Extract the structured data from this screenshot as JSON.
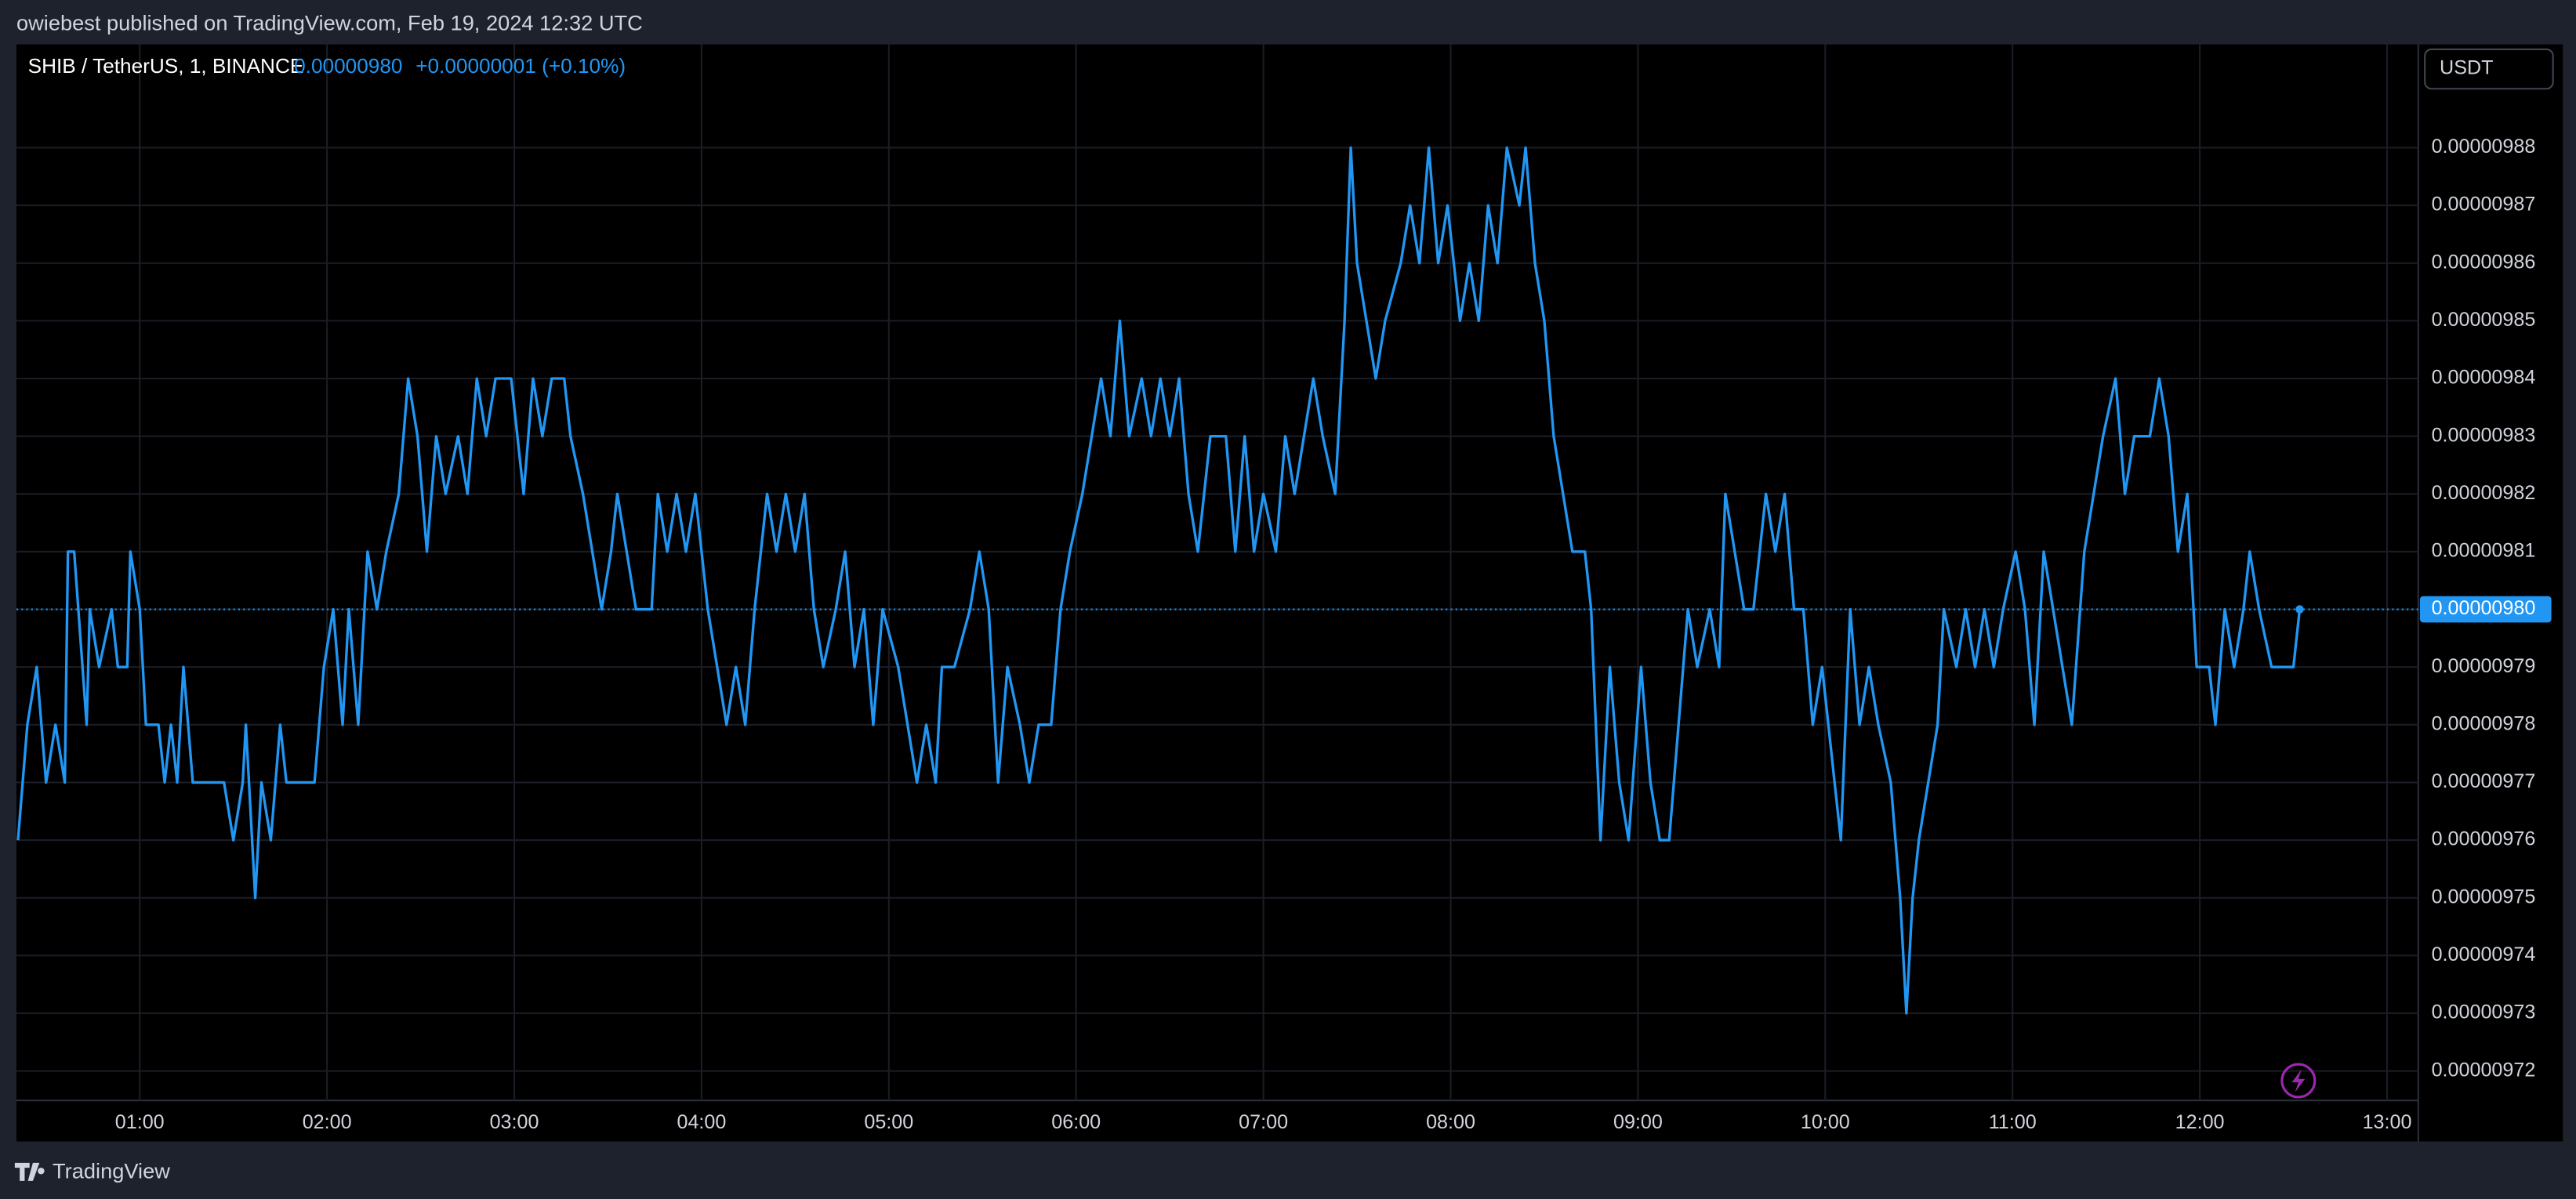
{
  "header": {
    "publisher": "owiebest published on TradingView.com, Feb 19, 2024 12:32 UTC"
  },
  "currency_button": "USDT",
  "footer": {
    "brand": "TradingView"
  },
  "chart_data": {
    "type": "line",
    "title": "SHIB / TetherUS, 1, BINANCE",
    "last_price": {
      "value": 9.8e-06,
      "label": "0.00000980"
    },
    "change": "+0.00000001 (+0.10%)",
    "color": "#2196f3",
    "grid": true,
    "xlim": [
      20.5,
      790
    ],
    "xticks": [
      {
        "value": 60,
        "label": "01:00"
      },
      {
        "value": 120,
        "label": "02:00"
      },
      {
        "value": 180,
        "label": "03:00"
      },
      {
        "value": 240,
        "label": "04:00"
      },
      {
        "value": 300,
        "label": "05:00"
      },
      {
        "value": 360,
        "label": "06:00"
      },
      {
        "value": 420,
        "label": "07:00"
      },
      {
        "value": 480,
        "label": "08:00"
      },
      {
        "value": 540,
        "label": "09:00"
      },
      {
        "value": 600,
        "label": "10:00"
      },
      {
        "value": 660,
        "label": "11:00"
      },
      {
        "value": 720,
        "label": "12:00"
      },
      {
        "value": 780,
        "label": "13:00"
      }
    ],
    "ylim": [
      9.7149e-06,
      9.8979e-06
    ],
    "yticks": [
      {
        "value": 9.72e-06,
        "label": "0.00000972"
      },
      {
        "value": 9.73e-06,
        "label": "0.00000973"
      },
      {
        "value": 9.74e-06,
        "label": "0.00000974"
      },
      {
        "value": 9.75e-06,
        "label": "0.00000975"
      },
      {
        "value": 9.76e-06,
        "label": "0.00000976"
      },
      {
        "value": 9.77e-06,
        "label": "0.00000977"
      },
      {
        "value": 9.78e-06,
        "label": "0.00000978"
      },
      {
        "value": 9.79e-06,
        "label": "0.00000979"
      },
      {
        "value": 9.8e-06,
        "label": "0.00000980"
      },
      {
        "value": 9.81e-06,
        "label": "0.00000981"
      },
      {
        "value": 9.82e-06,
        "label": "0.00000982"
      },
      {
        "value": 9.83e-06,
        "label": "0.00000983"
      },
      {
        "value": 9.84e-06,
        "label": "0.00000984"
      },
      {
        "value": 9.85e-06,
        "label": "0.00000985"
      },
      {
        "value": 9.86e-06,
        "label": "0.00000986"
      },
      {
        "value": 9.87e-06,
        "label": "0.00000987"
      },
      {
        "value": 9.88e-06,
        "label": "0.00000988"
      }
    ],
    "x": [
      21,
      24,
      27,
      30,
      33,
      36,
      37,
      39,
      43,
      44,
      47,
      51,
      53,
      56,
      57,
      60,
      62,
      66,
      68,
      70,
      72,
      74,
      77,
      87,
      90,
      93,
      94,
      97,
      99,
      102,
      105,
      107,
      116,
      119,
      122,
      125,
      127,
      130,
      133,
      136,
      139,
      143,
      146,
      149,
      152,
      155,
      158,
      162,
      165,
      168,
      171,
      174,
      179,
      183,
      186,
      189,
      192,
      196,
      198,
      202,
      205,
      208,
      211,
      213,
      216,
      219,
      224,
      226,
      229,
      232,
      235,
      238,
      242,
      245,
      248,
      251,
      254,
      257,
      261,
      264,
      267,
      270,
      273,
      276,
      279,
      283,
      286,
      289,
      292,
      295,
      298,
      303,
      306,
      309,
      312,
      315,
      317,
      321,
      326,
      329,
      332,
      335,
      338,
      342,
      345,
      348,
      352,
      355,
      358,
      362,
      365,
      368,
      371,
      374,
      377,
      381,
      384,
      387,
      390,
      393,
      396,
      399,
      403,
      408,
      411,
      414,
      417,
      420,
      424,
      427,
      430,
      433,
      436,
      439,
      443,
      446,
      448,
      450,
      453,
      456,
      459,
      464,
      467,
      470,
      473,
      476,
      479,
      483,
      486,
      489,
      492,
      495,
      498,
      502,
      504,
      507,
      510,
      513,
      516,
      519,
      523,
      525,
      528,
      531,
      534,
      537,
      541,
      544,
      547,
      550,
      553,
      556,
      559,
      563,
      566,
      568,
      571,
      574,
      577,
      581,
      584,
      587,
      590,
      593,
      596,
      599,
      603,
      605,
      608,
      611,
      614,
      617,
      621,
      624,
      626,
      628,
      630,
      633,
      636,
      638,
      642,
      645,
      648,
      651,
      654,
      657,
      661,
      664,
      667,
      670,
      673,
      676,
      679,
      683,
      686,
      689,
      693,
      696,
      699,
      704,
      707,
      710,
      713,
      716,
      719,
      723,
      725,
      728,
      731,
      734,
      736,
      739,
      743,
      750,
      752
    ],
    "values": [
      9.76e-06,
      9.78e-06,
      9.79e-06,
      9.77e-06,
      9.78e-06,
      9.77e-06,
      9.81e-06,
      9.81e-06,
      9.78e-06,
      9.8e-06,
      9.79e-06,
      9.8e-06,
      9.79e-06,
      9.79e-06,
      9.81e-06,
      9.8e-06,
      9.78e-06,
      9.78e-06,
      9.77e-06,
      9.78e-06,
      9.77e-06,
      9.79e-06,
      9.77e-06,
      9.77e-06,
      9.76e-06,
      9.77e-06,
      9.78e-06,
      9.75e-06,
      9.77e-06,
      9.76e-06,
      9.78e-06,
      9.77e-06,
      9.77e-06,
      9.79e-06,
      9.8e-06,
      9.78e-06,
      9.8e-06,
      9.78e-06,
      9.81e-06,
      9.8e-06,
      9.81e-06,
      9.82e-06,
      9.84e-06,
      9.83e-06,
      9.81e-06,
      9.83e-06,
      9.82e-06,
      9.83e-06,
      9.82e-06,
      9.84e-06,
      9.83e-06,
      9.84e-06,
      9.84e-06,
      9.82e-06,
      9.84e-06,
      9.83e-06,
      9.84e-06,
      9.84e-06,
      9.83e-06,
      9.82e-06,
      9.81e-06,
      9.8e-06,
      9.81e-06,
      9.82e-06,
      9.81e-06,
      9.8e-06,
      9.8e-06,
      9.82e-06,
      9.81e-06,
      9.82e-06,
      9.81e-06,
      9.82e-06,
      9.8e-06,
      9.79e-06,
      9.78e-06,
      9.79e-06,
      9.78e-06,
      9.8e-06,
      9.82e-06,
      9.81e-06,
      9.82e-06,
      9.81e-06,
      9.82e-06,
      9.8e-06,
      9.79e-06,
      9.8e-06,
      9.81e-06,
      9.79e-06,
      9.8e-06,
      9.78e-06,
      9.8e-06,
      9.79e-06,
      9.78e-06,
      9.77e-06,
      9.78e-06,
      9.77e-06,
      9.79e-06,
      9.79e-06,
      9.8e-06,
      9.81e-06,
      9.8e-06,
      9.77e-06,
      9.79e-06,
      9.78e-06,
      9.77e-06,
      9.78e-06,
      9.78e-06,
      9.8e-06,
      9.81e-06,
      9.82e-06,
      9.83e-06,
      9.84e-06,
      9.83e-06,
      9.85e-06,
      9.83e-06,
      9.84e-06,
      9.83e-06,
      9.84e-06,
      9.83e-06,
      9.84e-06,
      9.82e-06,
      9.81e-06,
      9.83e-06,
      9.83e-06,
      9.81e-06,
      9.83e-06,
      9.81e-06,
      9.82e-06,
      9.81e-06,
      9.83e-06,
      9.82e-06,
      9.83e-06,
      9.84e-06,
      9.83e-06,
      9.82e-06,
      9.85e-06,
      9.88e-06,
      9.86e-06,
      9.85e-06,
      9.84e-06,
      9.85e-06,
      9.86e-06,
      9.87e-06,
      9.86e-06,
      9.88e-06,
      9.86e-06,
      9.87e-06,
      9.85e-06,
      9.86e-06,
      9.85e-06,
      9.87e-06,
      9.86e-06,
      9.88e-06,
      9.87e-06,
      9.88e-06,
      9.86e-06,
      9.85e-06,
      9.83e-06,
      9.82e-06,
      9.81e-06,
      9.81e-06,
      9.8e-06,
      9.76e-06,
      9.79e-06,
      9.77e-06,
      9.76e-06,
      9.79e-06,
      9.77e-06,
      9.76e-06,
      9.76e-06,
      9.78e-06,
      9.8e-06,
      9.79e-06,
      9.8e-06,
      9.79e-06,
      9.82e-06,
      9.81e-06,
      9.8e-06,
      9.8e-06,
      9.82e-06,
      9.81e-06,
      9.82e-06,
      9.8e-06,
      9.8e-06,
      9.78e-06,
      9.79e-06,
      9.77e-06,
      9.76e-06,
      9.8e-06,
      9.78e-06,
      9.79e-06,
      9.78e-06,
      9.77e-06,
      9.75e-06,
      9.73e-06,
      9.75e-06,
      9.76e-06,
      9.77e-06,
      9.78e-06,
      9.8e-06,
      9.79e-06,
      9.8e-06,
      9.79e-06,
      9.8e-06,
      9.79e-06,
      9.8e-06,
      9.81e-06,
      9.8e-06,
      9.78e-06,
      9.81e-06,
      9.8e-06,
      9.79e-06,
      9.78e-06,
      9.81e-06,
      9.82e-06,
      9.83e-06,
      9.84e-06,
      9.82e-06,
      9.83e-06,
      9.83e-06,
      9.84e-06,
      9.83e-06,
      9.81e-06,
      9.82e-06,
      9.79e-06,
      9.79e-06,
      9.78e-06,
      9.8e-06,
      9.79e-06,
      9.8e-06,
      9.81e-06,
      9.8e-06,
      9.79e-06,
      9.79e-06,
      9.8e-06
    ]
  }
}
